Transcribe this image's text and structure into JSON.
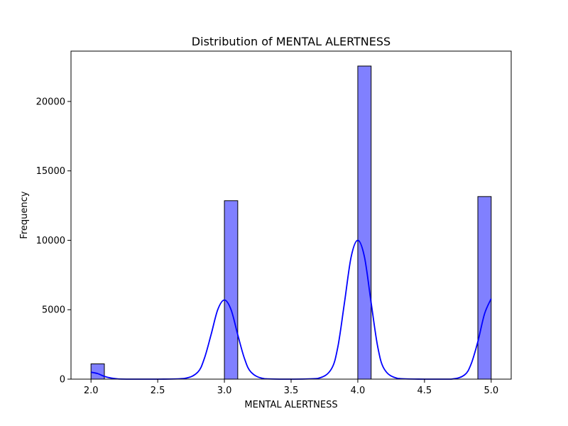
{
  "chart_data": {
    "type": "bar",
    "title": "Distribution of MENTAL ALERTNESS",
    "xlabel": "MENTAL ALERTNESS",
    "ylabel": "Frequency",
    "xlim": [
      1.85,
      5.15
    ],
    "ylim": [
      0,
      23625
    ],
    "x_ticks": [
      2.0,
      2.5,
      3.0,
      3.5,
      4.0,
      4.5,
      5.0
    ],
    "x_tick_labels": [
      "2.0",
      "2.5",
      "3.0",
      "3.5",
      "4.0",
      "4.5",
      "5.0"
    ],
    "y_ticks": [
      0,
      5000,
      10000,
      15000,
      20000
    ],
    "y_tick_labels": [
      "0",
      "5000",
      "10000",
      "15000",
      "20000"
    ],
    "grid": false,
    "legend": "none",
    "bin_width": 0.1,
    "bars": [
      {
        "x_start": 2.0,
        "x_end": 2.1,
        "count": 1100
      },
      {
        "x_start": 3.0,
        "x_end": 3.1,
        "count": 12850
      },
      {
        "x_start": 4.0,
        "x_end": 4.1,
        "count": 22550
      },
      {
        "x_start": 4.9,
        "x_end": 5.0,
        "count": 13150
      }
    ],
    "kde": {
      "x": [
        2.0,
        2.05,
        2.1,
        2.15,
        2.2,
        2.3,
        2.5,
        2.7,
        2.8,
        2.85,
        2.9,
        2.95,
        3.0,
        3.05,
        3.1,
        3.15,
        3.2,
        3.3,
        3.5,
        3.7,
        3.8,
        3.85,
        3.9,
        3.95,
        4.0,
        4.05,
        4.1,
        4.15,
        4.2,
        4.3,
        4.5,
        4.7,
        4.8,
        4.85,
        4.9,
        4.95,
        5.0
      ],
      "y": [
        500,
        400,
        200,
        80,
        20,
        0,
        0,
        50,
        500,
        1500,
        3200,
        5000,
        5700,
        5000,
        3200,
        1500,
        500,
        30,
        0,
        50,
        700,
        2300,
        5500,
        8800,
        10000,
        8800,
        5500,
        2300,
        700,
        50,
        0,
        0,
        300,
        1100,
        2700,
        4700,
        5800
      ]
    },
    "colors": {
      "bar_fill": "#8080ff",
      "bar_edge": "#000000",
      "kde_line": "#0000ff"
    }
  }
}
